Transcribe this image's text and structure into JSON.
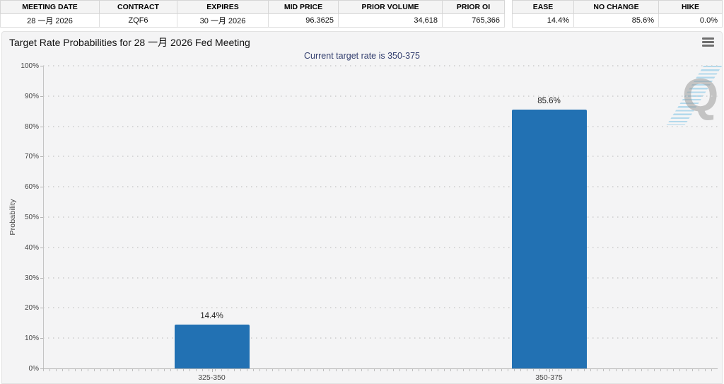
{
  "tables": {
    "contract": {
      "name": "contract-summary",
      "headers": [
        "MEETING DATE",
        "CONTRACT",
        "EXPIRES",
        "MID PRICE",
        "PRIOR VOLUME",
        "PRIOR OI"
      ],
      "values": [
        "28 一月 2026",
        "ZQF6",
        "30 一月 2026",
        "96.3625",
        "34,618",
        "765,366"
      ]
    },
    "moves": {
      "name": "probability-summary",
      "headers": [
        "EASE",
        "NO CHANGE",
        "HIKE"
      ],
      "values": [
        "14.4%",
        "85.6%",
        "0.0%"
      ]
    }
  },
  "chart": {
    "title": "Target Rate Probabilities for 28 一月 2026 Fed Meeting",
    "subtitle": "Current target rate is 350-375",
    "watermark_letter": "Q"
  },
  "chart_data": {
    "type": "bar",
    "categories": [
      "325-350",
      "350-375"
    ],
    "values": [
      14.4,
      85.6
    ],
    "value_labels": [
      "14.4%",
      "85.6%"
    ],
    "title": "Target Rate Probabilities for 28 一月 2026 Fed Meeting",
    "subtitle": "Current target rate is 350-375",
    "xlabel": "",
    "ylabel": "Probability",
    "ylim": [
      0,
      100
    ],
    "ytick_step": 10,
    "ytick_format": "percent",
    "grid": "dotted-horizontal",
    "legend": "none",
    "bar_color": "#2271b3"
  },
  "colors": {
    "bar": "#2271b3",
    "subtitle_text": "#333f6f",
    "panel_bg": "#f4f4f5",
    "header_bg": "#f4f4f4"
  }
}
